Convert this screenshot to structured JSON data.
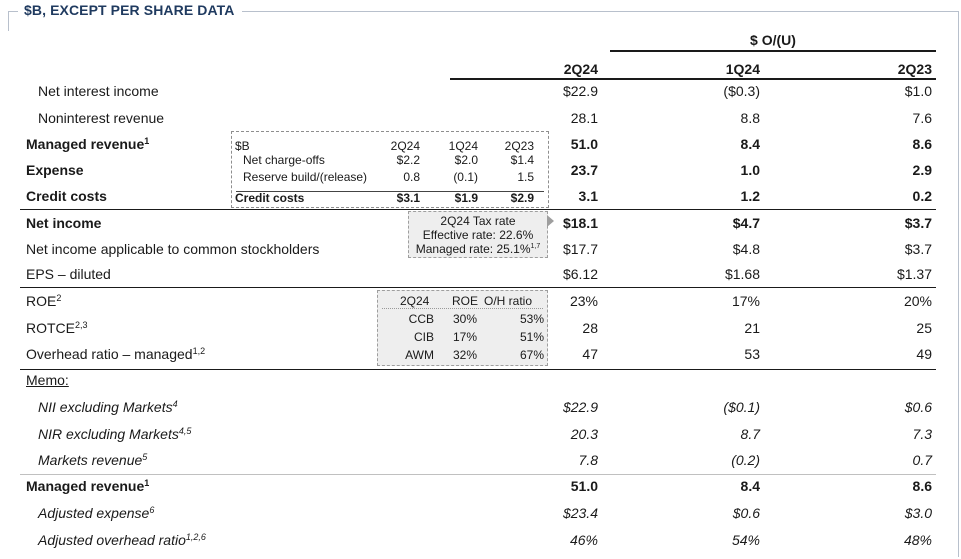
{
  "title": "$B, EXCEPT PER SHARE DATA",
  "header": {
    "group_label": "$ O/(U)",
    "columns": [
      "2Q24",
      "1Q24",
      "2Q23"
    ]
  },
  "rows": [
    {
      "label": "Net interest income",
      "sup": "",
      "values": [
        "$22.9",
        "($0.3)",
        "$1.0"
      ]
    },
    {
      "label": "Noninterest revenue",
      "sup": "",
      "values": [
        "28.1",
        "8.8",
        "7.6"
      ]
    },
    {
      "label": "Managed revenue",
      "sup": "1",
      "values": [
        "51.0",
        "8.4",
        "8.6"
      ]
    },
    {
      "label": "Expense",
      "sup": "",
      "values": [
        "23.7",
        "1.0",
        "2.9"
      ]
    },
    {
      "label": "Credit costs",
      "sup": "",
      "values": [
        "3.1",
        "1.2",
        "0.2"
      ]
    },
    {
      "label": "Net income",
      "sup": "",
      "values": [
        "$18.1",
        "$4.7",
        "$3.7"
      ]
    },
    {
      "label": "Net income applicable to common stockholders",
      "sup": "",
      "values": [
        "$17.7",
        "$4.8",
        "$3.7"
      ]
    },
    {
      "label": "EPS – diluted",
      "sup": "",
      "values": [
        "$6.12",
        "$1.68",
        "$1.37"
      ]
    },
    {
      "label": "ROE",
      "sup": "2",
      "values": [
        "23%",
        "17%",
        "20%"
      ]
    },
    {
      "label": "ROTCE",
      "sup": "2,3",
      "values": [
        "28",
        "21",
        "25"
      ]
    },
    {
      "label": "Overhead ratio – managed",
      "sup": "1,2",
      "values": [
        "47",
        "53",
        "49"
      ]
    }
  ],
  "memo": {
    "label": "Memo:",
    "rows": [
      {
        "label": "NII excluding Markets",
        "sup": "4",
        "values": [
          "$22.9",
          "($0.1)",
          "$0.6"
        ]
      },
      {
        "label": "NIR excluding Markets",
        "sup": "4,5",
        "values": [
          "20.3",
          "8.7",
          "7.3"
        ]
      },
      {
        "label": "Markets revenue",
        "sup": "5",
        "values": [
          "7.8",
          "(0.2)",
          "0.7"
        ]
      },
      {
        "label": "Managed revenue",
        "sup": "1",
        "values": [
          "51.0",
          "8.4",
          "8.6"
        ]
      },
      {
        "label": "Adjusted expense",
        "sup": "6",
        "values": [
          "$23.4",
          "$0.6",
          "$3.0"
        ]
      },
      {
        "label": "Adjusted overhead ratio",
        "sup": "1,2,6",
        "values": [
          "46%",
          "54%",
          "48%"
        ]
      }
    ]
  },
  "credit_box": {
    "unit": "$B",
    "columns": [
      "2Q24",
      "1Q24",
      "2Q23"
    ],
    "rows": [
      {
        "label": "Net charge-offs",
        "values": [
          "$2.2",
          "$2.0",
          "$1.4"
        ]
      },
      {
        "label": "Reserve build/(release)",
        "values": [
          "0.8",
          "(0.1)",
          "1.5"
        ]
      }
    ],
    "total": {
      "label": "Credit costs",
      "values": [
        "$3.1",
        "$1.9",
        "$2.9"
      ]
    }
  },
  "tax_box": {
    "title": "2Q24 Tax rate",
    "effective": "Effective rate: 22.6%",
    "managed": "Managed rate: 25.1%",
    "managed_sup": "1,7"
  },
  "segment_box": {
    "headers": [
      "2Q24",
      "ROE",
      "O/H ratio"
    ],
    "rows": [
      {
        "name": "CCB",
        "roe": "30%",
        "oh": "53%"
      },
      {
        "name": "CIB",
        "roe": "17%",
        "oh": "51%"
      },
      {
        "name": "AWM",
        "roe": "32%",
        "oh": "67%"
      }
    ]
  }
}
